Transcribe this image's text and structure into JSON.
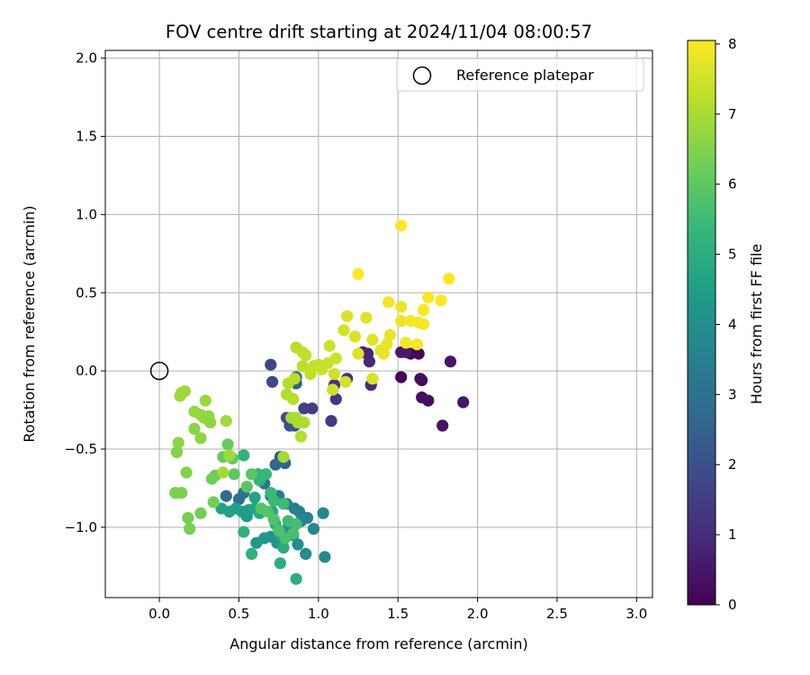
{
  "chart_data": {
    "type": "scatter",
    "title": "FOV centre drift starting at 2024/11/04 08:00:57",
    "xlabel": "Angular distance from reference (arcmin)",
    "ylabel": "Rotation from reference (arcmin)",
    "xlim": [
      -0.34,
      3.1
    ],
    "ylim": [
      -1.45,
      2.05
    ],
    "xticks": [
      "0.0",
      "0.5",
      "1.0",
      "1.5",
      "2.0",
      "2.5",
      "3.0"
    ],
    "yticks": [
      "−1.0",
      "−0.5",
      "0.0",
      "0.5",
      "1.0",
      "1.5",
      "2.0"
    ],
    "grid": true,
    "legend": {
      "placement": "upper right",
      "entries": [
        "Reference platepar"
      ]
    },
    "colorbar": {
      "label": "Hours from first FF file",
      "range": [
        0,
        8.05
      ],
      "ticks": [
        "0",
        "1",
        "2",
        "3",
        "4",
        "5",
        "6",
        "7",
        "8"
      ],
      "colormap": "viridis"
    },
    "reference_point": {
      "x": 0.0,
      "y": 0.0,
      "marker": "open circle",
      "color": "#000000"
    },
    "points": [
      [
        1.52,
        -0.04,
        0.05
      ],
      [
        1.58,
        0.11,
        0.1
      ],
      [
        1.63,
        0.11,
        0.15
      ],
      [
        1.64,
        -0.05,
        0.2
      ],
      [
        1.65,
        -0.06,
        0.25
      ],
      [
        1.65,
        -0.17,
        0.3
      ],
      [
        1.69,
        -0.19,
        0.35
      ],
      [
        1.78,
        -0.35,
        0.4
      ],
      [
        1.83,
        0.06,
        0.45
      ],
      [
        1.91,
        -0.2,
        0.5
      ],
      [
        1.52,
        0.12,
        0.55
      ],
      [
        1.55,
        0.12,
        0.6
      ],
      [
        1.28,
        0.12,
        0.7
      ],
      [
        1.31,
        0.11,
        0.8
      ],
      [
        1.32,
        0.06,
        0.9
      ],
      [
        1.33,
        -0.09,
        1.0
      ],
      [
        1.18,
        -0.05,
        1.1
      ],
      [
        1.1,
        -0.09,
        1.2
      ],
      [
        1.11,
        -0.18,
        1.3
      ],
      [
        1.08,
        -0.32,
        1.4
      ],
      [
        0.96,
        -0.24,
        1.5
      ],
      [
        0.91,
        -0.24,
        1.6
      ],
      [
        0.7,
        0.04,
        1.7
      ],
      [
        0.71,
        -0.07,
        1.8
      ],
      [
        0.8,
        -0.3,
        1.9
      ],
      [
        0.82,
        -0.35,
        2.0
      ],
      [
        0.85,
        -0.35,
        2.1
      ],
      [
        0.76,
        -0.55,
        2.2
      ],
      [
        0.79,
        -0.59,
        2.3
      ],
      [
        0.86,
        -0.08,
        2.4
      ],
      [
        0.86,
        -0.04,
        2.5
      ],
      [
        0.78,
        -0.58,
        2.6
      ],
      [
        0.73,
        -0.6,
        2.7
      ],
      [
        0.42,
        -0.8,
        2.8
      ],
      [
        0.5,
        -0.82,
        2.9
      ],
      [
        0.53,
        -0.78,
        3.0
      ],
      [
        0.66,
        -0.72,
        3.1
      ],
      [
        0.7,
        -0.8,
        3.2
      ],
      [
        0.75,
        -0.8,
        3.3
      ],
      [
        0.8,
        -0.85,
        3.4
      ],
      [
        0.85,
        -0.88,
        3.5
      ],
      [
        0.88,
        -0.9,
        3.55
      ],
      [
        0.89,
        -0.96,
        3.6
      ],
      [
        0.93,
        -0.94,
        3.65
      ],
      [
        0.97,
        -1.01,
        3.7
      ],
      [
        1.03,
        -0.91,
        3.75
      ],
      [
        1.04,
        -1.19,
        3.8
      ],
      [
        0.92,
        -1.17,
        3.85
      ],
      [
        0.84,
        -1.05,
        3.9
      ],
      [
        0.87,
        -1.11,
        3.95
      ],
      [
        0.81,
        -1.0,
        4.0
      ],
      [
        0.78,
        -1.07,
        4.1
      ],
      [
        0.74,
        -1.1,
        4.15
      ],
      [
        0.7,
        -1.06,
        4.2
      ],
      [
        0.66,
        -1.07,
        4.25
      ],
      [
        0.61,
        -1.1,
        4.3
      ],
      [
        0.56,
        -0.89,
        4.35
      ],
      [
        0.55,
        -0.93,
        4.4
      ],
      [
        0.52,
        -0.9,
        4.45
      ],
      [
        0.48,
        -0.88,
        4.5
      ],
      [
        0.44,
        -0.9,
        4.55
      ],
      [
        0.39,
        -0.88,
        4.6
      ],
      [
        0.6,
        -0.81,
        4.65
      ],
      [
        0.6,
        -0.88,
        4.7
      ],
      [
        0.63,
        -0.91,
        4.75
      ],
      [
        0.71,
        -0.9,
        4.8
      ],
      [
        0.73,
        -0.98,
        4.85
      ],
      [
        0.76,
        -1.04,
        4.9
      ],
      [
        0.78,
        -1.13,
        4.95
      ],
      [
        0.76,
        -1.23,
        5.0
      ],
      [
        0.86,
        -1.33,
        5.05
      ],
      [
        0.58,
        -1.17,
        5.1
      ],
      [
        0.53,
        -1.03,
        5.15
      ],
      [
        0.53,
        -0.54,
        5.2
      ],
      [
        0.62,
        -0.66,
        5.25
      ],
      [
        0.63,
        -0.7,
        5.3
      ],
      [
        0.67,
        -0.66,
        5.35
      ],
      [
        0.7,
        -0.78,
        5.4
      ],
      [
        0.72,
        -0.83,
        5.45
      ],
      [
        0.78,
        -0.85,
        5.5
      ],
      [
        0.81,
        -0.96,
        5.55
      ],
      [
        0.86,
        -0.98,
        5.6
      ],
      [
        0.84,
        -1.04,
        5.65
      ],
      [
        0.79,
        -1.07,
        5.7
      ],
      [
        0.75,
        -1.02,
        5.75
      ],
      [
        0.72,
        -0.95,
        5.8
      ],
      [
        0.68,
        -0.9,
        5.85
      ],
      [
        0.64,
        -0.88,
        5.9
      ],
      [
        0.58,
        -0.66,
        5.9
      ],
      [
        0.55,
        -0.74,
        5.95
      ],
      [
        0.47,
        -0.66,
        6.0
      ],
      [
        0.46,
        -0.56,
        6.05
      ],
      [
        0.4,
        -0.55,
        6.1
      ],
      [
        0.43,
        -0.47,
        6.15
      ],
      [
        0.35,
        -0.67,
        6.2
      ],
      [
        0.33,
        -0.69,
        6.25
      ],
      [
        0.34,
        -0.84,
        6.3
      ],
      [
        0.26,
        -0.91,
        6.3
      ],
      [
        0.18,
        -0.94,
        6.35
      ],
      [
        0.19,
        -1.01,
        6.35
      ],
      [
        0.1,
        -0.78,
        6.4
      ],
      [
        0.14,
        -0.78,
        6.45
      ],
      [
        0.17,
        -0.65,
        6.5
      ],
      [
        0.11,
        -0.52,
        6.55
      ],
      [
        0.12,
        -0.46,
        6.6
      ],
      [
        0.22,
        -0.37,
        6.6
      ],
      [
        0.26,
        -0.43,
        6.65
      ],
      [
        0.32,
        -0.33,
        6.65
      ],
      [
        0.31,
        -0.29,
        6.7
      ],
      [
        0.28,
        -0.3,
        6.7
      ],
      [
        0.22,
        -0.26,
        6.75
      ],
      [
        0.26,
        -0.28,
        6.75
      ],
      [
        0.29,
        -0.19,
        6.8
      ],
      [
        0.14,
        -0.14,
        6.8
      ],
      [
        0.16,
        -0.13,
        6.85
      ],
      [
        0.13,
        -0.16,
        6.85
      ],
      [
        0.42,
        -0.32,
        6.9
      ],
      [
        0.44,
        -0.54,
        6.9
      ],
      [
        0.4,
        -0.65,
        6.95
      ],
      [
        0.78,
        -0.55,
        6.95
      ],
      [
        0.83,
        -0.3,
        7.0
      ],
      [
        0.86,
        -0.3,
        7.0
      ],
      [
        0.87,
        -0.33,
        7.05
      ],
      [
        0.91,
        -0.33,
        7.05
      ],
      [
        0.89,
        -0.42,
        7.1
      ],
      [
        0.8,
        -0.15,
        7.1
      ],
      [
        0.84,
        -0.18,
        7.15
      ],
      [
        0.81,
        -0.08,
        7.15
      ],
      [
        0.85,
        -0.05,
        7.2
      ],
      [
        0.86,
        0.15,
        7.2
      ],
      [
        0.9,
        0.12,
        7.25
      ],
      [
        0.9,
        0.03,
        7.25
      ],
      [
        0.92,
        0.1,
        7.3
      ],
      [
        0.95,
        -0.02,
        7.3
      ],
      [
        0.97,
        0.03,
        7.35
      ],
      [
        1.0,
        0.04,
        7.35
      ],
      [
        1.02,
        0.01,
        7.4
      ],
      [
        1.06,
        0.05,
        7.4
      ],
      [
        1.07,
        0.16,
        7.45
      ],
      [
        1.11,
        0.08,
        7.45
      ],
      [
        1.09,
        -0.12,
        7.5
      ],
      [
        1.1,
        -0.02,
        7.5
      ],
      [
        1.17,
        -0.07,
        7.55
      ],
      [
        1.16,
        0.26,
        7.55
      ],
      [
        1.18,
        0.35,
        7.6
      ],
      [
        1.23,
        0.22,
        7.6
      ],
      [
        1.25,
        0.11,
        7.65
      ],
      [
        1.3,
        0.34,
        7.7
      ],
      [
        1.34,
        0.2,
        7.7
      ],
      [
        1.39,
        0.13,
        7.75
      ],
      [
        1.41,
        0.11,
        7.75
      ],
      [
        1.43,
        0.17,
        7.8
      ],
      [
        1.45,
        0.23,
        7.8
      ],
      [
        1.52,
        0.32,
        7.85
      ],
      [
        1.52,
        0.41,
        7.85
      ],
      [
        1.44,
        0.44,
        7.9
      ],
      [
        1.55,
        0.18,
        7.9
      ],
      [
        1.58,
        0.32,
        7.95
      ],
      [
        1.62,
        0.17,
        7.95
      ],
      [
        1.63,
        0.31,
        8.0
      ],
      [
        1.66,
        0.39,
        8.0
      ],
      [
        1.66,
        0.3,
        8.0
      ],
      [
        1.69,
        0.47,
        8.0
      ],
      [
        1.77,
        0.45,
        8.05
      ],
      [
        1.82,
        0.59,
        8.05
      ],
      [
        1.25,
        0.62,
        8.05
      ],
      [
        1.52,
        0.93,
        8.05
      ],
      [
        1.34,
        -0.05,
        7.6
      ]
    ]
  }
}
